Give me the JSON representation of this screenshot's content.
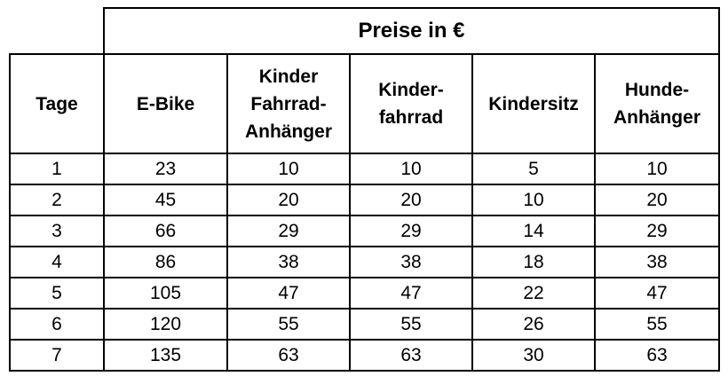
{
  "table": {
    "super_header": "Preise in €",
    "columns": [
      "Tage",
      "E-Bike",
      "Kinder\nFahrrad-\nAnhänger",
      "Kinder-\nfahrrad",
      "Kindersitz",
      "Hunde-\nAnhänger"
    ],
    "rows": [
      [
        "1",
        "23",
        "10",
        "10",
        "5",
        "10"
      ],
      [
        "2",
        "45",
        "20",
        "20",
        "10",
        "20"
      ],
      [
        "3",
        "66",
        "29",
        "29",
        "14",
        "29"
      ],
      [
        "4",
        "86",
        "38",
        "38",
        "18",
        "38"
      ],
      [
        "5",
        "105",
        "47",
        "47",
        "22",
        "47"
      ],
      [
        "6",
        "120",
        "55",
        "55",
        "26",
        "55"
      ],
      [
        "7",
        "135",
        "63",
        "63",
        "30",
        "63"
      ]
    ]
  }
}
